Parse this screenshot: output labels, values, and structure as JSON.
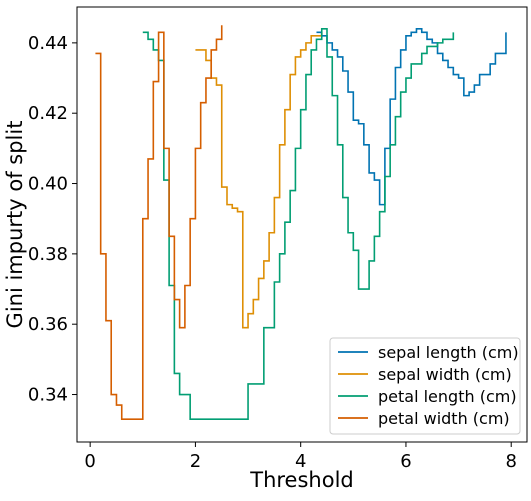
{
  "chart_data": {
    "type": "line",
    "title": "",
    "xlabel": "Threshold",
    "ylabel": "Gini impurty of split",
    "xlim": [
      -0.25,
      8.3
    ],
    "ylim": [
      0.3265,
      0.4502
    ],
    "xticks": [
      0,
      2,
      4,
      6,
      8
    ],
    "yticks": [
      0.34,
      0.36,
      0.38,
      0.4,
      0.42,
      0.44
    ],
    "ytick_labels": [
      "0.34",
      "0.36",
      "0.38",
      "0.40",
      "0.42",
      "0.44"
    ],
    "grid": false,
    "legend_position": "bottom-right",
    "step": true,
    "series": [
      {
        "name": "sepal length (cm)",
        "color": "#0173b2",
        "points": [
          [
            4.3,
            0.443
          ],
          [
            4.4,
            0.442
          ],
          [
            4.5,
            0.44
          ],
          [
            4.6,
            0.438
          ],
          [
            4.7,
            0.436
          ],
          [
            4.8,
            0.432
          ],
          [
            4.9,
            0.426
          ],
          [
            5.0,
            0.418
          ],
          [
            5.1,
            0.417
          ],
          [
            5.2,
            0.411
          ],
          [
            5.3,
            0.403
          ],
          [
            5.4,
            0.401
          ],
          [
            5.5,
            0.394
          ],
          [
            5.6,
            0.41
          ],
          [
            5.7,
            0.424
          ],
          [
            5.8,
            0.433
          ],
          [
            5.9,
            0.438
          ],
          [
            6.0,
            0.442
          ],
          [
            6.1,
            0.443
          ],
          [
            6.2,
            0.444
          ],
          [
            6.3,
            0.443
          ],
          [
            6.4,
            0.441
          ],
          [
            6.5,
            0.44
          ],
          [
            6.6,
            0.437
          ],
          [
            6.7,
            0.435
          ],
          [
            6.8,
            0.433
          ],
          [
            6.9,
            0.431
          ],
          [
            7.0,
            0.43
          ],
          [
            7.1,
            0.425
          ],
          [
            7.2,
            0.426
          ],
          [
            7.3,
            0.428
          ],
          [
            7.4,
            0.431
          ],
          [
            7.6,
            0.434
          ],
          [
            7.7,
            0.437
          ],
          [
            7.9,
            0.443
          ]
        ]
      },
      {
        "name": "sepal width (cm)",
        "color": "#de8f05",
        "points": [
          [
            2.0,
            0.438
          ],
          [
            2.2,
            0.435
          ],
          [
            2.3,
            0.43
          ],
          [
            2.4,
            0.428
          ],
          [
            2.5,
            0.399
          ],
          [
            2.6,
            0.394
          ],
          [
            2.7,
            0.393
          ],
          [
            2.8,
            0.392
          ],
          [
            2.9,
            0.359
          ],
          [
            3.0,
            0.363
          ],
          [
            3.1,
            0.367
          ],
          [
            3.2,
            0.373
          ],
          [
            3.3,
            0.378
          ],
          [
            3.4,
            0.386
          ],
          [
            3.5,
            0.396
          ],
          [
            3.6,
            0.411
          ],
          [
            3.7,
            0.421
          ],
          [
            3.8,
            0.431
          ],
          [
            3.9,
            0.436
          ],
          [
            4.0,
            0.438
          ],
          [
            4.1,
            0.44
          ],
          [
            4.2,
            0.442
          ],
          [
            4.4,
            0.443
          ]
        ]
      },
      {
        "name": "petal length (cm)",
        "color": "#029e73",
        "points": [
          [
            1.0,
            0.443
          ],
          [
            1.1,
            0.441
          ],
          [
            1.2,
            0.438
          ],
          [
            1.3,
            0.435
          ],
          [
            1.4,
            0.401
          ],
          [
            1.5,
            0.371
          ],
          [
            1.6,
            0.346
          ],
          [
            1.7,
            0.34
          ],
          [
            1.9,
            0.333
          ],
          [
            3.0,
            0.343
          ],
          [
            3.3,
            0.359
          ],
          [
            3.5,
            0.372
          ],
          [
            3.6,
            0.38
          ],
          [
            3.7,
            0.389
          ],
          [
            3.8,
            0.398
          ],
          [
            3.9,
            0.41
          ],
          [
            4.0,
            0.421
          ],
          [
            4.1,
            0.431
          ],
          [
            4.2,
            0.438
          ],
          [
            4.3,
            0.441
          ],
          [
            4.4,
            0.444
          ],
          [
            4.5,
            0.436
          ],
          [
            4.6,
            0.425
          ],
          [
            4.7,
            0.411
          ],
          [
            4.8,
            0.396
          ],
          [
            4.9,
            0.386
          ],
          [
            5.0,
            0.381
          ],
          [
            5.1,
            0.37
          ],
          [
            5.3,
            0.378
          ],
          [
            5.4,
            0.385
          ],
          [
            5.5,
            0.392
          ],
          [
            5.6,
            0.402
          ],
          [
            5.7,
            0.411
          ],
          [
            5.8,
            0.419
          ],
          [
            5.9,
            0.426
          ],
          [
            6.0,
            0.43
          ],
          [
            6.1,
            0.434
          ],
          [
            6.3,
            0.437
          ],
          [
            6.4,
            0.439
          ],
          [
            6.6,
            0.44
          ],
          [
            6.7,
            0.441
          ],
          [
            6.9,
            0.443
          ]
        ]
      },
      {
        "name": "petal width (cm)",
        "color": "#d55e00",
        "points": [
          [
            0.1,
            0.437
          ],
          [
            0.2,
            0.38
          ],
          [
            0.3,
            0.361
          ],
          [
            0.4,
            0.34
          ],
          [
            0.5,
            0.337
          ],
          [
            0.6,
            0.333
          ],
          [
            1.0,
            0.39
          ],
          [
            1.1,
            0.407
          ],
          [
            1.2,
            0.429
          ],
          [
            1.3,
            0.443
          ],
          [
            1.4,
            0.41
          ],
          [
            1.5,
            0.385
          ],
          [
            1.6,
            0.367
          ],
          [
            1.7,
            0.359
          ],
          [
            1.8,
            0.371
          ],
          [
            1.9,
            0.39
          ],
          [
            2.0,
            0.41
          ],
          [
            2.1,
            0.423
          ],
          [
            2.2,
            0.43
          ],
          [
            2.3,
            0.438
          ],
          [
            2.4,
            0.441
          ],
          [
            2.5,
            0.445
          ]
        ]
      }
    ]
  }
}
